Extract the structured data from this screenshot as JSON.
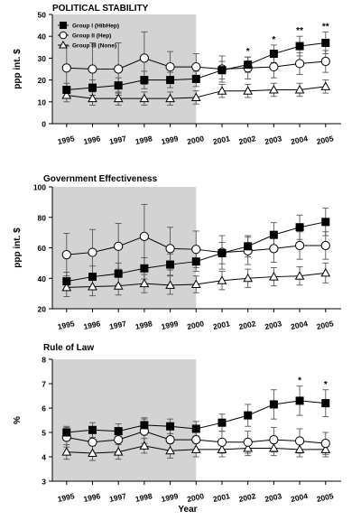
{
  "colors": {
    "shade": "#d3d3d3",
    "axis": "#000000",
    "group1_fill": "#000000",
    "group2_fill": "#ffffff",
    "group3_fill": "#ffffff"
  },
  "chart_data": [
    {
      "type": "line",
      "title": "POLITICAL STABILITY",
      "ylabel": "ppp int. $",
      "xlabel": "",
      "ylim": [
        0,
        50
      ],
      "yticks": [
        0,
        10,
        20,
        30,
        40,
        50
      ],
      "shaded_x_range": [
        "1995",
        "2000"
      ],
      "legend_position": "top-left",
      "categories": [
        "1995",
        "1996",
        "1997",
        "1998",
        "1999",
        "2000",
        "2001",
        "2002",
        "2003",
        "2004",
        "2005"
      ],
      "series": [
        {
          "name": "Group I (HibHep)",
          "marker": "square-filled",
          "values": [
            15.5,
            16.5,
            17.5,
            20,
            20,
            20.5,
            24.5,
            27,
            32,
            35.5,
            37
          ],
          "err": [
            3,
            3.5,
            3.5,
            4,
            3.5,
            3.5,
            4,
            3.5,
            4,
            4.5,
            5
          ]
        },
        {
          "name": "Group II (Hep)",
          "marker": "circle-open",
          "values": [
            25.5,
            25,
            25,
            30,
            26,
            26,
            25,
            25.5,
            26,
            27.5,
            28.5
          ],
          "err": [
            10,
            12,
            12,
            12,
            7,
            6,
            6,
            5,
            5,
            5,
            5
          ]
        },
        {
          "name": "Group III (None)",
          "marker": "triangle-open",
          "values": [
            13,
            11.5,
            11.5,
            11.5,
            11.5,
            12,
            15,
            15,
            15.5,
            15.5,
            17
          ],
          "err": [
            3,
            3,
            3,
            3,
            3,
            3,
            3,
            3,
            3,
            3,
            3
          ]
        }
      ],
      "annotations": [
        {
          "x": "2002",
          "text": "*"
        },
        {
          "x": "2003",
          "text": "*"
        },
        {
          "x": "2004",
          "text": "**"
        },
        {
          "x": "2005",
          "text": "**"
        }
      ]
    },
    {
      "type": "line",
      "title": "Government Effectiveness",
      "ylabel": "ppp int. $",
      "xlabel": "",
      "ylim": [
        20,
        100
      ],
      "yticks": [
        20,
        40,
        60,
        80,
        100
      ],
      "shaded_x_range": [
        "1995",
        "2000"
      ],
      "categories": [
        "1995",
        "1996",
        "1997",
        "1998",
        "1999",
        "2000",
        "2001",
        "2002",
        "2003",
        "2004",
        "2005"
      ],
      "series": [
        {
          "name": "Group I (HibHep)",
          "marker": "square-filled",
          "values": [
            38,
            41,
            43,
            46.5,
            49,
            51,
            56.5,
            61,
            68.5,
            73.5,
            77
          ],
          "err": [
            6,
            7,
            7,
            7,
            7,
            6.5,
            7,
            7,
            8,
            8,
            9
          ]
        },
        {
          "name": "Group II (Hep)",
          "marker": "circle-open",
          "values": [
            55.5,
            57,
            61,
            67.5,
            59.5,
            59,
            57,
            58,
            59.5,
            61.5,
            61.5
          ],
          "err": [
            14,
            15,
            15,
            21,
            14,
            12,
            11,
            9,
            9,
            9,
            9
          ]
        },
        {
          "name": "Group III (None)",
          "marker": "triangle-open",
          "values": [
            34,
            34.5,
            35,
            36.5,
            35.5,
            36,
            38.5,
            40,
            41,
            41.5,
            43.5
          ],
          "err": [
            6,
            6,
            6,
            6,
            6,
            5.5,
            6,
            6,
            6,
            6,
            6.5
          ]
        }
      ],
      "annotations": []
    },
    {
      "type": "line",
      "title": "Rule of Law",
      "ylabel": "%",
      "xlabel": "Year",
      "ylim": [
        3,
        8
      ],
      "yticks": [
        3,
        4,
        5,
        6,
        7,
        8
      ],
      "shaded_x_range": [
        "1995",
        "2000"
      ],
      "categories": [
        "1995",
        "1996",
        "1997",
        "1998",
        "1999",
        "2000",
        "2001",
        "2002",
        "2003",
        "2004",
        "2005"
      ],
      "series": [
        {
          "name": "Group I (HibHep)",
          "marker": "square-filled",
          "values": [
            5,
            5.1,
            5.05,
            5.3,
            5.25,
            5.15,
            5.4,
            5.7,
            6.15,
            6.3,
            6.2
          ],
          "err": [
            0.25,
            0.3,
            0.3,
            0.3,
            0.3,
            0.3,
            0.35,
            0.45,
            0.6,
            0.6,
            0.55
          ]
        },
        {
          "name": "Group II (Hep)",
          "marker": "circle-open",
          "values": [
            4.8,
            4.6,
            4.7,
            5.05,
            4.7,
            4.7,
            4.6,
            4.6,
            4.7,
            4.65,
            4.55
          ],
          "err": [
            0.4,
            0.45,
            0.5,
            0.5,
            0.45,
            0.4,
            0.45,
            0.45,
            0.5,
            0.5,
            0.45
          ]
        },
        {
          "name": "Group III (None)",
          "marker": "triangle-open",
          "values": [
            4.2,
            4.15,
            4.2,
            4.45,
            4.25,
            4.3,
            4.3,
            4.35,
            4.35,
            4.3,
            4.3
          ],
          "err": [
            0.3,
            0.3,
            0.3,
            0.3,
            0.3,
            0.3,
            0.3,
            0.3,
            0.3,
            0.3,
            0.3
          ]
        }
      ],
      "annotations": [
        {
          "x": "2004",
          "text": "*"
        },
        {
          "x": "2005",
          "text": "*"
        }
      ]
    }
  ]
}
